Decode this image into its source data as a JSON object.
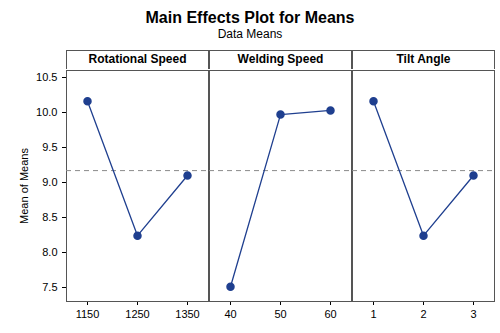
{
  "chart_data": {
    "type": "line",
    "title": "Main Effects Plot for Means",
    "subtitle": "Data Means",
    "ylabel": "Mean of Means",
    "color": "#1f3f8f",
    "marker": "circle",
    "ylim": [
      7.3,
      10.6
    ],
    "yticks": [
      7.5,
      {
        "value": 8,
        "label": "8.0"
      },
      8.5,
      {
        "value": 9,
        "label": "9.0"
      },
      9.5,
      {
        "value": 10,
        "label": "10.0"
      },
      10.5
    ],
    "mean": 9.17,
    "panels": [
      {
        "title": "Rotational Speed",
        "categories": [
          "1150",
          "1250",
          "1350"
        ],
        "values": [
          10.16,
          8.24,
          9.1
        ]
      },
      {
        "title": "Welding Speed",
        "categories": [
          "40",
          "50",
          "60"
        ],
        "values": [
          7.51,
          9.97,
          10.03
        ]
      },
      {
        "title": "Tilt Angle",
        "categories": [
          "1",
          "2",
          "3"
        ],
        "values": [
          10.16,
          8.24,
          9.1
        ]
      }
    ]
  }
}
